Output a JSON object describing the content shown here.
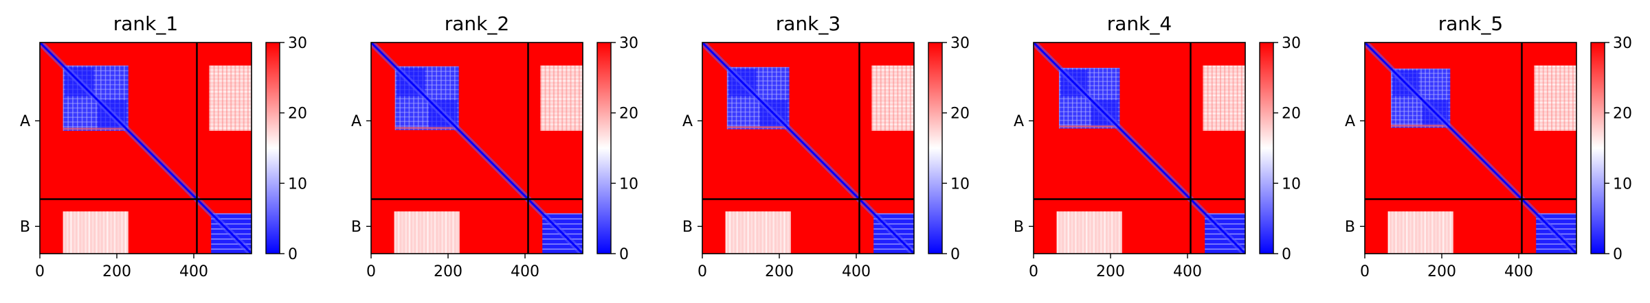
{
  "figure": {
    "description_type": "pae-heatmaps"
  },
  "colorbar": {
    "ticks": [
      "0",
      "10",
      "20",
      "30"
    ],
    "vmin": 0,
    "vmax": 30,
    "colormap": [
      "#0000ff",
      "#ffffff",
      "#ff0000"
    ]
  },
  "chart_data": [
    {
      "type": "heatmap",
      "title": "rank_1",
      "xticks": [
        "0",
        "200",
        "400"
      ],
      "yticks": [
        "A",
        "B"
      ],
      "xlim": [
        0,
        550
      ],
      "ylim": [
        550,
        0
      ],
      "chain_boundary": 408,
      "zrange": [
        0,
        30
      ],
      "grid": false
    },
    {
      "type": "heatmap",
      "title": "rank_2",
      "xticks": [
        "0",
        "200",
        "400"
      ],
      "yticks": [
        "A",
        "B"
      ],
      "xlim": [
        0,
        550
      ],
      "ylim": [
        550,
        0
      ],
      "chain_boundary": 408,
      "zrange": [
        0,
        30
      ],
      "grid": false
    },
    {
      "type": "heatmap",
      "title": "rank_3",
      "xticks": [
        "0",
        "200",
        "400"
      ],
      "yticks": [
        "A",
        "B"
      ],
      "xlim": [
        0,
        550
      ],
      "ylim": [
        550,
        0
      ],
      "chain_boundary": 408,
      "zrange": [
        0,
        30
      ],
      "grid": false
    },
    {
      "type": "heatmap",
      "title": "rank_4",
      "xticks": [
        "0",
        "200",
        "400"
      ],
      "yticks": [
        "A",
        "B"
      ],
      "xlim": [
        0,
        550
      ],
      "ylim": [
        550,
        0
      ],
      "chain_boundary": 408,
      "zrange": [
        0,
        30
      ],
      "grid": false
    },
    {
      "type": "heatmap",
      "title": "rank_5",
      "xticks": [
        "0",
        "200",
        "400"
      ],
      "yticks": [
        "A",
        "B"
      ],
      "xlim": [
        0,
        550
      ],
      "ylim": [
        550,
        0
      ],
      "chain_boundary": 408,
      "zrange": [
        0,
        30
      ],
      "grid": false
    }
  ]
}
